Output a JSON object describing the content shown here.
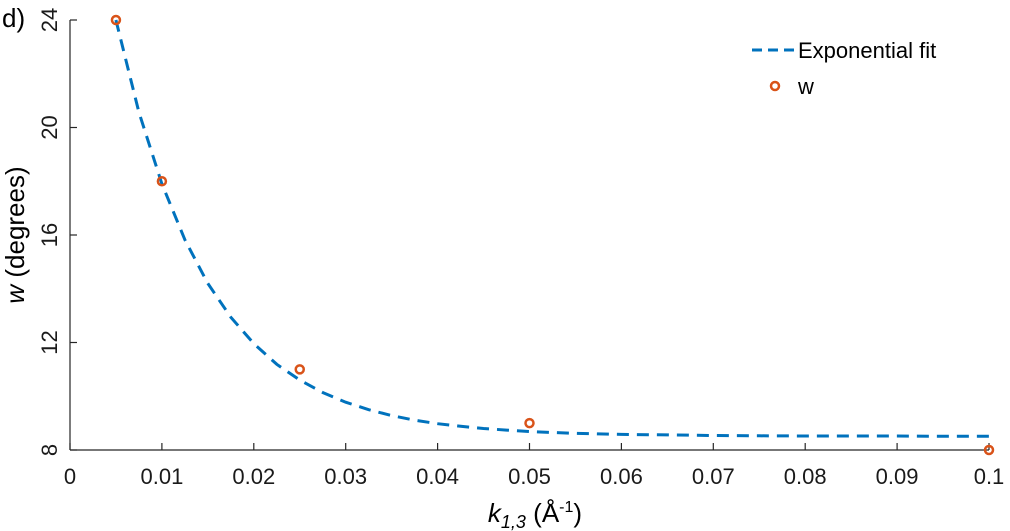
{
  "panel_label": "d)",
  "chart_data": {
    "type": "scatter",
    "xlabel": {
      "main": "k",
      "sub": "1,3",
      "unit_open": " (Å",
      "unit_sup": "-1",
      "unit_close": ")"
    },
    "ylabel": {
      "var": "w",
      "rest": " (degrees)"
    },
    "xlim": [
      0,
      0.1
    ],
    "ylim": [
      8,
      24
    ],
    "xticks": [
      0,
      0.01,
      0.02,
      0.03,
      0.04,
      0.05,
      0.06,
      0.07,
      0.08,
      0.09,
      0.1
    ],
    "xtick_labels": [
      "0",
      "0.01",
      "0.02",
      "0.03",
      "0.04",
      "0.05",
      "0.06",
      "0.07",
      "0.08",
      "0.09",
      "0.1"
    ],
    "yticks": [
      8,
      12,
      16,
      20,
      24
    ],
    "ytick_labels": [
      "8",
      "12",
      "16",
      "20",
      "24"
    ],
    "series": [
      {
        "name": "Exponential fit",
        "kind": "line",
        "style": "dashed",
        "color": "#0072BD",
        "x": [
          0.005,
          0.0075,
          0.01,
          0.0125,
          0.015,
          0.0175,
          0.02,
          0.0225,
          0.025,
          0.0275,
          0.03,
          0.0325,
          0.035,
          0.0375,
          0.04,
          0.0425,
          0.045,
          0.0475,
          0.05,
          0.0525,
          0.055,
          0.0575,
          0.06,
          0.065,
          0.07,
          0.075,
          0.08,
          0.085,
          0.09,
          0.095,
          0.1
        ],
        "y": [
          24.0,
          20.57,
          17.9,
          15.82,
          14.2,
          12.94,
          11.96,
          11.19,
          10.6,
          10.14,
          9.78,
          9.5,
          9.28,
          9.11,
          8.98,
          8.88,
          8.8,
          8.74,
          8.69,
          8.65,
          8.62,
          8.6,
          8.58,
          8.56,
          8.54,
          8.53,
          8.52,
          8.52,
          8.52,
          8.51,
          8.51
        ]
      },
      {
        "name": "w",
        "kind": "scatter",
        "marker": "circle",
        "color": "#D95319",
        "x": [
          0.005,
          0.01,
          0.025,
          0.05,
          0.1
        ],
        "y": [
          24.0,
          18.0,
          11.0,
          9.0,
          8.0
        ]
      }
    ],
    "legend": "top-right",
    "grid": false
  }
}
